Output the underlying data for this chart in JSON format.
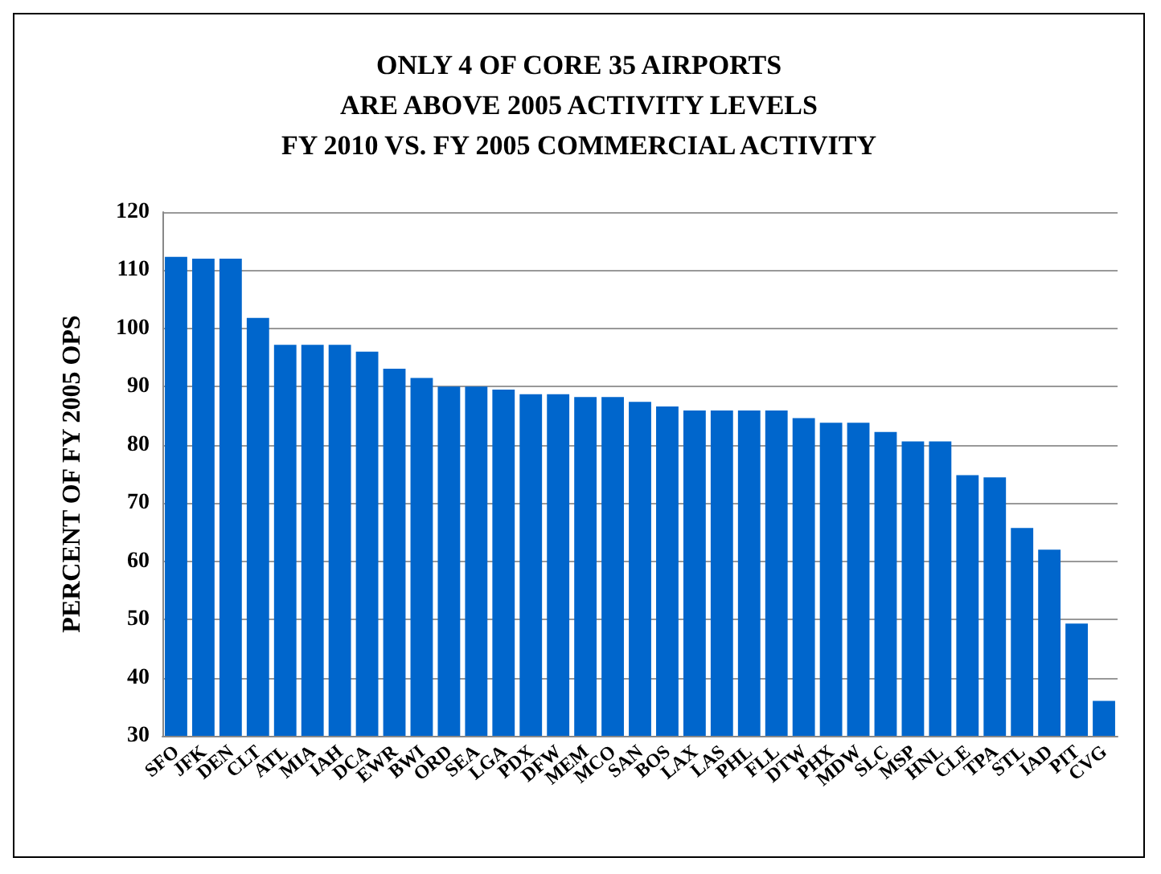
{
  "chart_data": {
    "type": "bar",
    "title": "ONLY 4 OF CORE 35 AIRPORTS\nARE ABOVE 2005 ACTIVITY LEVELS\nFY 2010 VS. FY 2005 COMMERCIAL ACTIVITY",
    "ylabel": "PERCENT OF FY 2005 OPS",
    "categories": [
      "SFO",
      "JFK",
      "DEN",
      "CLT",
      "ATL",
      "MIA",
      "IAH",
      "DCA",
      "EWR",
      "BWI",
      "ORD",
      "SEA",
      "LGA",
      "PDX",
      "DFW",
      "MEM",
      "MCO",
      "SAN",
      "BOS",
      "LAX",
      "LAS",
      "PHL",
      "FLL",
      "DTW",
      "PHX",
      "MDW",
      "SLC",
      "MSP",
      "HNL",
      "CLE",
      "TPA",
      "STL",
      "IAD",
      "PIT",
      "CVG"
    ],
    "values": [
      112.3,
      112,
      112,
      101.8,
      97.2,
      97.2,
      97.2,
      96,
      93.1,
      91.5,
      90,
      90,
      89.5,
      88.7,
      88.7,
      88.2,
      88.2,
      87.4,
      86.6,
      85.9,
      85.9,
      85.9,
      85.9,
      84.6,
      83.8,
      83.8,
      82.2,
      80.6,
      80.6,
      74.8,
      74.4,
      65.7,
      62,
      49.3,
      36
    ],
    "color": "#0066cc",
    "ylim": [
      30,
      120
    ],
    "yticks": [
      30,
      40,
      50,
      60,
      70,
      80,
      90,
      100,
      110,
      120
    ],
    "grid": "y"
  }
}
